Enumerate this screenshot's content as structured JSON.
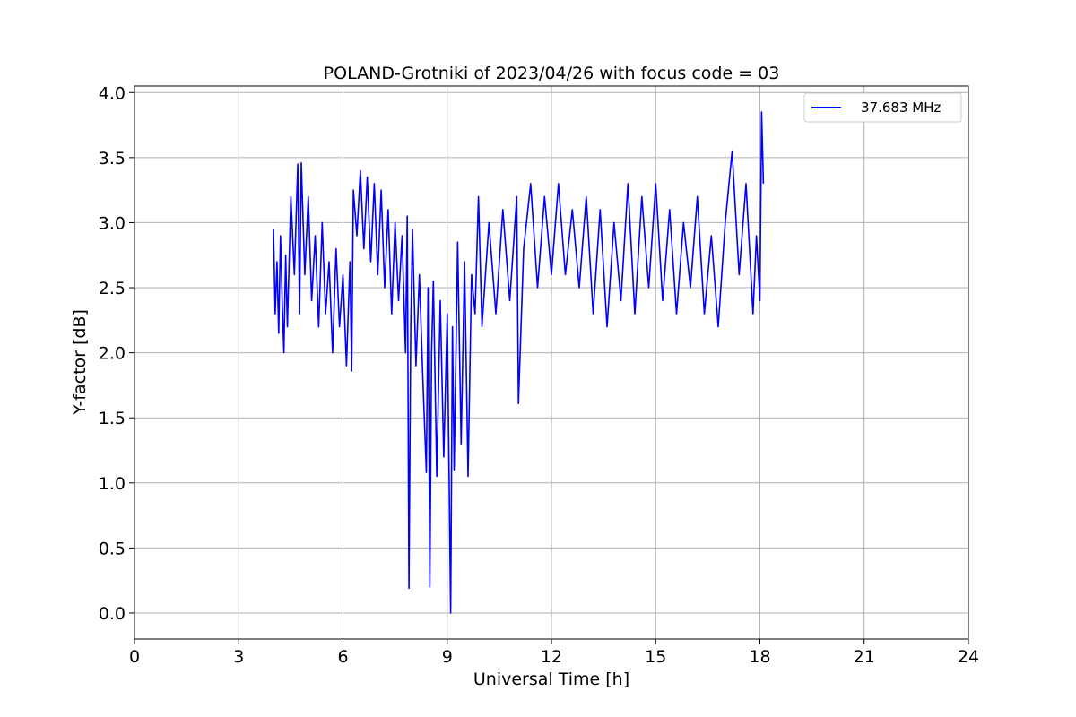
{
  "chart_data": {
    "type": "line",
    "title": "POLAND-Grotniki of 2023/04/26 with focus code = 03",
    "xlabel": "Universal Time [h]",
    "ylabel": "Y-factor [dB]",
    "xlim": [
      0,
      24
    ],
    "ylim": [
      -0.2,
      4.05
    ],
    "xticks": [
      0,
      3,
      6,
      9,
      12,
      15,
      18,
      21,
      24
    ],
    "xtick_labels": [
      "0",
      "3",
      "6",
      "9",
      "12",
      "15",
      "18",
      "21",
      "24"
    ],
    "yticks": [
      0.0,
      0.5,
      1.0,
      1.5,
      2.0,
      2.5,
      3.0,
      3.5,
      4.0
    ],
    "ytick_labels": [
      "0.0",
      "0.5",
      "1.0",
      "1.5",
      "2.0",
      "2.5",
      "3.0",
      "3.5",
      "4.0"
    ],
    "grid": true,
    "legend_position": "top-right",
    "series": [
      {
        "name": "37.683 MHz",
        "color": "#0000ff",
        "x": [
          4.0,
          4.05,
          4.1,
          4.15,
          4.2,
          4.25,
          4.3,
          4.35,
          4.4,
          4.5,
          4.6,
          4.7,
          4.75,
          4.8,
          4.9,
          5.0,
          5.1,
          5.2,
          5.3,
          5.4,
          5.5,
          5.6,
          5.7,
          5.8,
          5.9,
          6.0,
          6.1,
          6.2,
          6.25,
          6.3,
          6.4,
          6.5,
          6.6,
          6.7,
          6.8,
          6.9,
          7.0,
          7.1,
          7.2,
          7.3,
          7.4,
          7.5,
          7.6,
          7.7,
          7.8,
          7.85,
          7.9,
          7.95,
          8.0,
          8.1,
          8.2,
          8.3,
          8.4,
          8.45,
          8.5,
          8.55,
          8.6,
          8.7,
          8.8,
          8.9,
          9.0,
          9.1,
          9.15,
          9.2,
          9.3,
          9.4,
          9.5,
          9.6,
          9.7,
          9.8,
          9.9,
          10.0,
          10.2,
          10.4,
          10.6,
          10.8,
          11.0,
          11.05,
          11.2,
          11.4,
          11.6,
          11.8,
          12.0,
          12.2,
          12.4,
          12.6,
          12.8,
          13.0,
          13.2,
          13.4,
          13.6,
          13.8,
          14.0,
          14.2,
          14.4,
          14.6,
          14.8,
          15.0,
          15.2,
          15.4,
          15.6,
          15.8,
          16.0,
          16.2,
          16.4,
          16.6,
          16.8,
          17.0,
          17.2,
          17.4,
          17.6,
          17.8,
          17.9,
          18.0,
          18.05,
          18.1
        ],
        "y": [
          2.95,
          2.3,
          2.7,
          2.15,
          2.9,
          2.4,
          2.0,
          2.75,
          2.2,
          3.2,
          2.6,
          3.45,
          2.3,
          3.46,
          2.6,
          3.2,
          2.4,
          2.9,
          2.2,
          3.0,
          2.3,
          2.7,
          2.0,
          2.8,
          2.2,
          2.6,
          1.9,
          2.7,
          1.86,
          3.25,
          2.9,
          3.4,
          2.8,
          3.35,
          2.7,
          3.3,
          2.6,
          3.25,
          2.5,
          3.1,
          2.3,
          3.0,
          2.4,
          2.9,
          2.0,
          3.05,
          0.19,
          2.2,
          2.95,
          1.9,
          2.6,
          1.8,
          1.08,
          2.5,
          0.2,
          2.0,
          2.55,
          1.05,
          2.4,
          1.2,
          2.3,
          0.0,
          2.2,
          1.1,
          2.85,
          1.3,
          2.7,
          1.05,
          2.6,
          2.3,
          3.2,
          2.2,
          3.0,
          2.3,
          3.1,
          2.4,
          3.2,
          1.61,
          2.8,
          3.3,
          2.5,
          3.2,
          2.6,
          3.3,
          2.6,
          3.1,
          2.5,
          3.2,
          2.3,
          3.1,
          2.2,
          3.0,
          2.4,
          3.3,
          2.3,
          3.2,
          2.5,
          3.3,
          2.4,
          3.1,
          2.3,
          3.0,
          2.5,
          3.2,
          2.3,
          2.9,
          2.2,
          3.0,
          3.55,
          2.6,
          3.3,
          2.3,
          2.9,
          2.4,
          3.85,
          3.3
        ]
      }
    ]
  }
}
